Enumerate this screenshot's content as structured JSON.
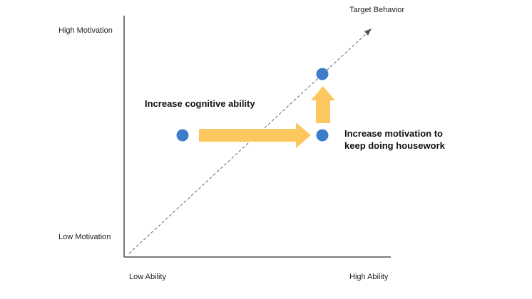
{
  "labels": {
    "high_motivation": "High Motivation",
    "low_motivation": "Low Motivation",
    "low_ability": "Low Ability",
    "high_ability": "High Ability",
    "target_behavior": "Target Behavior"
  },
  "callouts": {
    "cognitive": "Increase cognitive ability",
    "motivation": "Increase motivation to keep doing housework"
  },
  "colors": {
    "axis": "#333333",
    "dot": "#3c7dc9",
    "arrow": "#fcc75e",
    "dash": "#555555"
  }
}
